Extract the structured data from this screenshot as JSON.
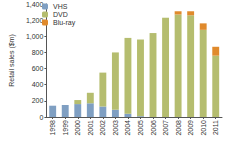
{
  "chart_data": {
    "type": "bar",
    "y_label": "Retail sales ($m)",
    "categories": [
      "1998",
      "1999",
      "2000",
      "2001",
      "2002",
      "2003",
      "2004",
      "2005",
      "2006",
      "2007",
      "2008",
      "2009",
      "2010",
      "2011"
    ],
    "series": [
      {
        "name": "VHS",
        "color": "#7f9fc2",
        "values": [
          140,
          150,
          160,
          170,
          130,
          90,
          40,
          10,
          0,
          0,
          0,
          0,
          0,
          0
        ]
      },
      {
        "name": "DVD",
        "color": "#b5bd6f",
        "values": [
          0,
          0,
          50,
          130,
          420,
          710,
          940,
          950,
          1040,
          1230,
          1270,
          1260,
          1080,
          760
        ]
      },
      {
        "name": "Blu-ray",
        "color": "#e08a2c",
        "values": [
          0,
          0,
          0,
          0,
          0,
          0,
          0,
          0,
          0,
          0,
          40,
          50,
          80,
          110
        ]
      }
    ],
    "stacked": true,
    "ylim": [
      0,
      1400
    ],
    "yticks": [
      0,
      200,
      400,
      600,
      800,
      {
        "value": 1000,
        "label": "1,000"
      },
      {
        "value": 1200,
        "label": "1,200"
      },
      {
        "value": 1400,
        "label": "1,400"
      }
    ],
    "grid": false,
    "legend": "top-left"
  }
}
